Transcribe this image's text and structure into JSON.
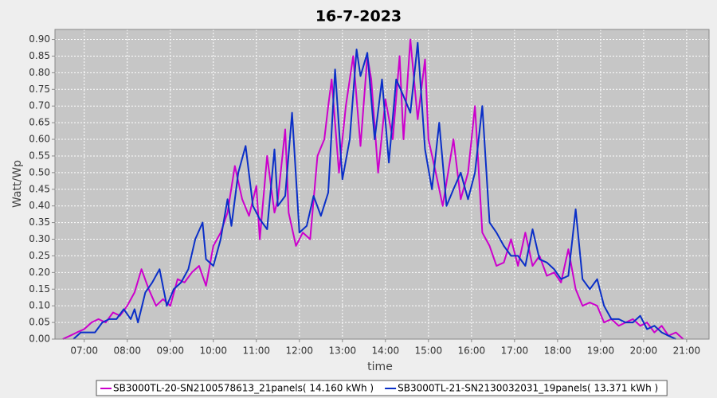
{
  "chart_data": {
    "type": "line",
    "title": "16-7-2023",
    "x_label": "time",
    "y_label": "Watt/Wp",
    "xlim": [
      6.32,
      21.52
    ],
    "ylim": [
      0,
      0.93
    ],
    "grid": true,
    "legend": "bottom",
    "xticks": [
      {
        "value": 7,
        "label": "07:00"
      },
      {
        "value": 8,
        "label": "08:00"
      },
      {
        "value": 9,
        "label": "09:00"
      },
      {
        "value": 10,
        "label": "10:00"
      },
      {
        "value": 11,
        "label": "11:00"
      },
      {
        "value": 12,
        "label": "12:00"
      },
      {
        "value": 13,
        "label": "13:00"
      },
      {
        "value": 14,
        "label": "14:00"
      },
      {
        "value": 15,
        "label": "15:00"
      },
      {
        "value": 16,
        "label": "16:00"
      },
      {
        "value": 17,
        "label": "17:00"
      },
      {
        "value": 18,
        "label": "18:00"
      },
      {
        "value": 19,
        "label": "19:00"
      },
      {
        "value": 20,
        "label": "20:00"
      },
      {
        "value": 21,
        "label": "21:00"
      }
    ],
    "yticks": [
      {
        "value": 0,
        "label": "0.00"
      },
      {
        "value": 0.05,
        "label": "0.05"
      },
      {
        "value": 0.1,
        "label": "0.10"
      },
      {
        "value": 0.15,
        "label": "0.15"
      },
      {
        "value": 0.2,
        "label": "0.20"
      },
      {
        "value": 0.25,
        "label": "0.25"
      },
      {
        "value": 0.3,
        "label": "0.30"
      },
      {
        "value": 0.35,
        "label": "0.35"
      },
      {
        "value": 0.4,
        "label": "0.40"
      },
      {
        "value": 0.45,
        "label": "0.45"
      },
      {
        "value": 0.5,
        "label": "0.50"
      },
      {
        "value": 0.55,
        "label": "0.55"
      },
      {
        "value": 0.6,
        "label": "0.60"
      },
      {
        "value": 0.65,
        "label": "0.65"
      },
      {
        "value": 0.7,
        "label": "0.70"
      },
      {
        "value": 0.75,
        "label": "0.75"
      },
      {
        "value": 0.8,
        "label": "0.80"
      },
      {
        "value": 0.85,
        "label": "0.85"
      },
      {
        "value": 0.9,
        "label": "0.90"
      }
    ],
    "series": [
      {
        "name": "SB3000TL-20-SN2100578613_21panels( 14.160 kWh )",
        "color": "#cc00cc",
        "x": [
          6.5,
          6.67,
          6.83,
          7.0,
          7.17,
          7.33,
          7.5,
          7.67,
          7.83,
          8.0,
          8.17,
          8.33,
          8.5,
          8.67,
          8.83,
          9.0,
          9.17,
          9.33,
          9.5,
          9.67,
          9.83,
          10.0,
          10.17,
          10.33,
          10.5,
          10.67,
          10.83,
          11.0,
          11.08,
          11.25,
          11.42,
          11.5,
          11.67,
          11.75,
          11.92,
          12.08,
          12.25,
          12.42,
          12.58,
          12.67,
          12.75,
          12.92,
          13.08,
          13.25,
          13.42,
          13.58,
          13.67,
          13.83,
          14.0,
          14.17,
          14.33,
          14.42,
          14.58,
          14.75,
          14.92,
          15.0,
          15.17,
          15.33,
          15.58,
          15.75,
          15.92,
          16.08,
          16.25,
          16.42,
          16.58,
          16.75,
          16.92,
          17.08,
          17.25,
          17.42,
          17.58,
          17.75,
          17.92,
          18.08,
          18.25,
          18.42,
          18.58,
          18.75,
          18.92,
          19.08,
          19.25,
          19.42,
          19.58,
          19.75,
          19.92,
          20.08,
          20.25,
          20.42,
          20.58,
          20.75,
          20.92
        ],
        "values": [
          0,
          0.01,
          0.02,
          0.03,
          0.05,
          0.06,
          0.05,
          0.08,
          0.07,
          0.1,
          0.14,
          0.21,
          0.15,
          0.1,
          0.12,
          0.1,
          0.18,
          0.17,
          0.2,
          0.22,
          0.16,
          0.28,
          0.32,
          0.38,
          0.52,
          0.42,
          0.37,
          0.46,
          0.3,
          0.55,
          0.38,
          0.42,
          0.63,
          0.38,
          0.28,
          0.32,
          0.3,
          0.55,
          0.6,
          0.7,
          0.78,
          0.5,
          0.7,
          0.85,
          0.58,
          0.85,
          0.78,
          0.5,
          0.72,
          0.6,
          0.85,
          0.6,
          0.9,
          0.66,
          0.84,
          0.6,
          0.5,
          0.4,
          0.6,
          0.42,
          0.5,
          0.7,
          0.32,
          0.28,
          0.22,
          0.23,
          0.3,
          0.22,
          0.32,
          0.22,
          0.25,
          0.19,
          0.2,
          0.17,
          0.27,
          0.15,
          0.1,
          0.11,
          0.1,
          0.05,
          0.06,
          0.04,
          0.05,
          0.06,
          0.04,
          0.05,
          0.02,
          0.04,
          0.01,
          0.02,
          0
        ]
      },
      {
        "name": "SB3000TL-21-SN2130032031_19panels( 13.371 kWh )",
        "color": "#0a2fc8",
        "x": [
          6.75,
          6.92,
          7.08,
          7.25,
          7.42,
          7.58,
          7.75,
          7.92,
          8.08,
          8.17,
          8.25,
          8.42,
          8.58,
          8.75,
          8.92,
          9.08,
          9.25,
          9.42,
          9.58,
          9.75,
          9.83,
          10.0,
          10.17,
          10.33,
          10.42,
          10.58,
          10.75,
          10.92,
          11.08,
          11.25,
          11.42,
          11.5,
          11.67,
          11.83,
          12.0,
          12.17,
          12.33,
          12.5,
          12.67,
          12.83,
          13.0,
          13.17,
          13.33,
          13.42,
          13.58,
          13.75,
          13.92,
          14.08,
          14.25,
          14.42,
          14.58,
          14.75,
          14.92,
          15.08,
          15.25,
          15.42,
          15.58,
          15.75,
          15.92,
          16.08,
          16.25,
          16.42,
          16.58,
          16.75,
          16.92,
          17.08,
          17.25,
          17.42,
          17.58,
          17.75,
          17.92,
          18.08,
          18.25,
          18.42,
          18.58,
          18.75,
          18.92,
          19.08,
          19.25,
          19.42,
          19.58,
          19.75,
          19.92,
          20.08,
          20.25,
          20.42,
          20.58,
          20.75
        ],
        "values": [
          0,
          0.02,
          0.02,
          0.02,
          0.05,
          0.06,
          0.06,
          0.09,
          0.06,
          0.09,
          0.05,
          0.14,
          0.17,
          0.21,
          0.1,
          0.15,
          0.17,
          0.21,
          0.3,
          0.35,
          0.24,
          0.22,
          0.3,
          0.42,
          0.34,
          0.5,
          0.58,
          0.4,
          0.36,
          0.33,
          0.57,
          0.4,
          0.43,
          0.68,
          0.32,
          0.34,
          0.43,
          0.37,
          0.44,
          0.81,
          0.48,
          0.6,
          0.87,
          0.79,
          0.86,
          0.6,
          0.78,
          0.53,
          0.78,
          0.73,
          0.68,
          0.89,
          0.57,
          0.45,
          0.65,
          0.4,
          0.45,
          0.5,
          0.42,
          0.5,
          0.7,
          0.35,
          0.32,
          0.28,
          0.25,
          0.25,
          0.22,
          0.33,
          0.24,
          0.23,
          0.21,
          0.18,
          0.19,
          0.39,
          0.18,
          0.15,
          0.18,
          0.1,
          0.06,
          0.06,
          0.05,
          0.05,
          0.07,
          0.03,
          0.04,
          0.02,
          0.01,
          0
        ]
      }
    ]
  }
}
